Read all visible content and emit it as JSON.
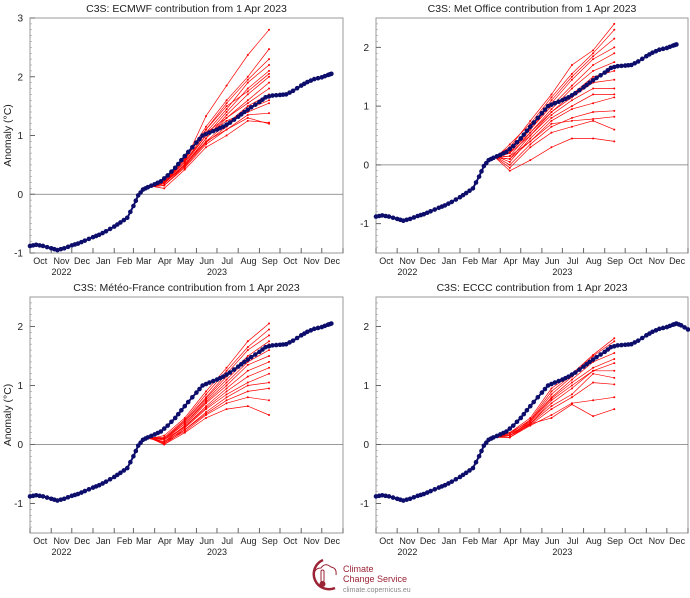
{
  "colors": {
    "observed": "#0d0d6b",
    "ensemble": "#ff0000",
    "zero_line": "#777777",
    "logo": "#9b2335"
  },
  "logo": {
    "line1": "Climate",
    "line2": "Change Service",
    "url": "climate.copernicus.eu"
  },
  "chart_data": [
    {
      "type": "line",
      "title": "C3S: ECMWF contribution from 1 Apr 2023",
      "ylabel": "Anomaly (°C)",
      "ylim": [
        -1,
        3
      ],
      "yticks": [
        -1,
        0,
        1,
        2,
        3
      ],
      "xlim": [
        "2022-10-01",
        "2024-01-01"
      ],
      "xtick_labels": [
        "Oct",
        "Nov",
        "Dec",
        "Jan",
        "Feb",
        "Mar",
        "Apr",
        "May",
        "Jun",
        "Jul",
        "Aug",
        "Sep",
        "Oct",
        "Nov",
        "Dec"
      ],
      "year_labels": [
        "2022",
        "2023"
      ],
      "obs_extra": [],
      "member_dates": [
        "2023-03-25",
        "2023-04-15",
        "2023-05-15",
        "2023-06-15",
        "2023-07-15",
        "2023-08-15",
        "2023-09-15"
      ],
      "members": [
        [
          0.15,
          0.2,
          0.55,
          1.33,
          1.85,
          2.37,
          2.8
        ],
        [
          0.13,
          0.22,
          0.6,
          1.15,
          1.6,
          2.0,
          2.47
        ],
        [
          0.12,
          0.25,
          0.58,
          1.1,
          1.55,
          1.95,
          2.3
        ],
        [
          0.14,
          0.2,
          0.55,
          1.05,
          1.45,
          1.9,
          2.2
        ],
        [
          0.12,
          0.18,
          0.52,
          1.0,
          1.4,
          1.8,
          2.1
        ],
        [
          0.15,
          0.24,
          0.6,
          1.1,
          1.5,
          1.75,
          2.05
        ],
        [
          0.13,
          0.2,
          0.5,
          0.95,
          1.35,
          1.7,
          2.0
        ],
        [
          0.12,
          0.15,
          0.48,
          0.95,
          1.3,
          1.6,
          1.9
        ],
        [
          0.14,
          0.22,
          0.55,
          1.05,
          1.3,
          1.55,
          1.8
        ],
        [
          0.13,
          0.18,
          0.5,
          0.9,
          1.2,
          1.5,
          1.7
        ],
        [
          0.12,
          0.2,
          0.47,
          0.88,
          1.15,
          1.45,
          1.6
        ],
        [
          0.15,
          0.25,
          0.55,
          1.0,
          1.25,
          1.4,
          1.55
        ],
        [
          0.13,
          0.15,
          0.45,
          0.85,
          1.1,
          1.35,
          1.38
        ],
        [
          0.12,
          0.2,
          0.5,
          0.9,
          1.1,
          1.3,
          1.2
        ],
        [
          0.14,
          0.1,
          0.42,
          0.8,
          1.0,
          1.25,
          1.22
        ]
      ]
    },
    {
      "type": "line",
      "title": "C3S: Met Office contribution from 1 Apr 2023",
      "ylabel": "",
      "ylim": [
        -1.5,
        2.5
      ],
      "yticks": [
        -1,
        0,
        1,
        2
      ],
      "xlim": [
        "2022-10-01",
        "2024-01-01"
      ],
      "xtick_labels": [
        "Oct",
        "Nov",
        "Dec",
        "Jan",
        "Feb",
        "Mar",
        "Apr",
        "May",
        "Jun",
        "Jul",
        "Aug",
        "Sep",
        "Oct",
        "Nov",
        "Dec"
      ],
      "year_labels": [
        "2022",
        "2023"
      ],
      "obs_extra": [],
      "member_dates": [
        "2023-03-25",
        "2023-04-15",
        "2023-05-15",
        "2023-06-15",
        "2023-07-15",
        "2023-08-15",
        "2023-09-15"
      ],
      "members": [
        [
          0.15,
          0.3,
          0.75,
          1.2,
          1.7,
          1.95,
          2.4
        ],
        [
          0.12,
          0.35,
          0.7,
          1.15,
          1.55,
          1.9,
          2.3
        ],
        [
          0.14,
          0.25,
          0.65,
          1.1,
          1.5,
          1.85,
          2.15
        ],
        [
          0.13,
          0.2,
          0.6,
          1.05,
          1.45,
          1.8,
          2.0
        ],
        [
          0.15,
          0.3,
          0.6,
          1.0,
          1.35,
          1.7,
          1.9
        ],
        [
          0.12,
          0.15,
          0.55,
          0.95,
          1.3,
          1.6,
          1.75
        ],
        [
          0.14,
          0.22,
          0.55,
          0.9,
          1.2,
          1.5,
          1.6
        ],
        [
          0.13,
          0.1,
          0.5,
          0.9,
          1.15,
          1.4,
          1.45
        ],
        [
          0.12,
          0.2,
          0.5,
          0.85,
          1.1,
          1.3,
          1.3
        ],
        [
          0.15,
          0.05,
          0.45,
          0.8,
          1.0,
          1.2,
          1.2
        ],
        [
          0.13,
          0.15,
          0.4,
          0.75,
          0.95,
          1.05,
          1.15
        ],
        [
          0.14,
          0.0,
          0.35,
          0.65,
          0.8,
          0.9,
          0.92
        ],
        [
          0.12,
          0.1,
          0.4,
          0.7,
          0.75,
          0.78,
          0.82
        ],
        [
          0.13,
          -0.05,
          0.3,
          0.55,
          0.65,
          0.75,
          0.6
        ],
        [
          0.12,
          -0.1,
          0.08,
          0.3,
          0.45,
          0.45,
          0.4
        ]
      ]
    },
    {
      "type": "line",
      "title": "C3S: Météo-France contribution from 1 Apr 2023",
      "ylabel": "Anomaly (°C)",
      "ylim": [
        -1.5,
        2.5
      ],
      "yticks": [
        -1,
        0,
        1,
        2
      ],
      "xlim": [
        "2022-10-01",
        "2024-01-01"
      ],
      "xtick_labels": [
        "Oct",
        "Nov",
        "Dec",
        "Jan",
        "Feb",
        "Mar",
        "Apr",
        "May",
        "Jun",
        "Jul",
        "Aug",
        "Sep",
        "Oct",
        "Nov",
        "Dec"
      ],
      "year_labels": [
        "2022",
        "2023"
      ],
      "obs_extra": [],
      "member_dates": [
        "2023-03-25",
        "2023-04-15",
        "2023-05-15",
        "2023-06-15",
        "2023-07-15",
        "2023-08-15",
        "2023-09-15"
      ],
      "members": [
        [
          0.1,
          0.15,
          0.45,
          0.9,
          1.3,
          1.75,
          2.05
        ],
        [
          0.12,
          0.12,
          0.42,
          0.85,
          1.25,
          1.65,
          1.95
        ],
        [
          0.1,
          0.1,
          0.4,
          0.8,
          1.2,
          1.6,
          1.85
        ],
        [
          0.11,
          0.1,
          0.38,
          0.78,
          1.15,
          1.5,
          1.75
        ],
        [
          0.1,
          0.08,
          0.35,
          0.75,
          1.1,
          1.45,
          1.7
        ],
        [
          0.12,
          0.1,
          0.35,
          0.72,
          1.05,
          1.4,
          1.6
        ],
        [
          0.1,
          0.05,
          0.32,
          0.7,
          1.0,
          1.35,
          1.5
        ],
        [
          0.11,
          0.08,
          0.3,
          0.65,
          0.95,
          1.25,
          1.4
        ],
        [
          0.1,
          0.05,
          0.3,
          0.62,
          0.9,
          1.15,
          1.3
        ],
        [
          0.12,
          0.02,
          0.28,
          0.6,
          0.85,
          1.05,
          1.2
        ],
        [
          0.1,
          0.05,
          0.25,
          0.55,
          0.8,
          1.0,
          1.05
        ],
        [
          0.11,
          0.0,
          0.25,
          0.52,
          0.75,
          0.9,
          0.95
        ],
        [
          0.1,
          0.03,
          0.22,
          0.5,
          0.7,
          0.8,
          0.75
        ],
        [
          0.12,
          0.0,
          0.2,
          0.45,
          0.6,
          0.65,
          0.5
        ]
      ]
    },
    {
      "type": "line",
      "title": "C3S: ECCC contribution from 1 Apr 2023",
      "ylabel": "",
      "ylim": [
        -1.5,
        2.5
      ],
      "yticks": [
        -1,
        0,
        1,
        2
      ],
      "xlim": [
        "2022-10-01",
        "2024-01-01"
      ],
      "xtick_labels": [
        "Oct",
        "Nov",
        "Dec",
        "Jan",
        "Feb",
        "Mar",
        "Apr",
        "May",
        "Jun",
        "Jul",
        "Aug",
        "Sep",
        "Oct",
        "Nov",
        "Dec"
      ],
      "year_labels": [
        "2022",
        "2023"
      ],
      "obs_extra": [
        [
          "2023-12-22",
          2.02
        ],
        [
          "2024-01-01",
          1.95
        ]
      ],
      "member_dates": [
        "2023-03-25",
        "2023-04-15",
        "2023-05-15",
        "2023-06-15",
        "2023-07-15",
        "2023-08-15",
        "2023-09-15"
      ],
      "members": [
        [
          0.15,
          0.2,
          0.45,
          0.95,
          1.2,
          1.52,
          1.8
        ],
        [
          0.13,
          0.18,
          0.42,
          0.9,
          1.18,
          1.5,
          1.75
        ],
        [
          0.14,
          0.15,
          0.4,
          0.85,
          1.15,
          1.45,
          1.65
        ],
        [
          0.12,
          0.2,
          0.4,
          0.8,
          1.1,
          1.4,
          1.55
        ],
        [
          0.15,
          0.15,
          0.38,
          0.78,
          1.05,
          1.3,
          1.45
        ],
        [
          0.13,
          0.12,
          0.35,
          0.75,
          1.0,
          1.25,
          1.38
        ],
        [
          0.12,
          0.18,
          0.36,
          0.7,
          0.95,
          1.25,
          1.25
        ],
        [
          0.14,
          0.12,
          0.35,
          0.65,
          0.85,
          1.2,
          1.13
        ],
        [
          0.13,
          0.15,
          0.33,
          0.6,
          0.8,
          1.05,
          1.02
        ],
        [
          0.12,
          0.12,
          0.32,
          0.5,
          0.7,
          0.75,
          0.8
        ],
        [
          0.14,
          0.15,
          0.35,
          0.45,
          0.68,
          0.48,
          0.6
        ]
      ]
    }
  ],
  "observed": [
    [
      "2022-10-01",
      -0.88
    ],
    [
      "2022-10-10",
      -0.86
    ],
    [
      "2022-10-20",
      -0.88
    ],
    [
      "2022-11-01",
      -0.92
    ],
    [
      "2022-11-10",
      -0.95
    ],
    [
      "2022-11-20",
      -0.92
    ],
    [
      "2022-12-01",
      -0.87
    ],
    [
      "2022-12-10",
      -0.84
    ],
    [
      "2022-12-20",
      -0.79
    ],
    [
      "2023-01-01",
      -0.73
    ],
    [
      "2023-01-10",
      -0.69
    ],
    [
      "2023-01-20",
      -0.63
    ],
    [
      "2023-02-01",
      -0.55
    ],
    [
      "2023-02-10",
      -0.48
    ],
    [
      "2023-02-20",
      -0.4
    ],
    [
      "2023-03-01",
      -0.2
    ],
    [
      "2023-03-08",
      -0.02
    ],
    [
      "2023-03-15",
      0.08
    ],
    [
      "2023-03-22",
      0.12
    ],
    [
      "2023-04-01",
      0.17
    ],
    [
      "2023-04-10",
      0.22
    ],
    [
      "2023-04-20",
      0.32
    ],
    [
      "2023-05-01",
      0.45
    ],
    [
      "2023-05-10",
      0.58
    ],
    [
      "2023-05-20",
      0.72
    ],
    [
      "2023-06-01",
      0.88
    ],
    [
      "2023-06-10",
      1.0
    ],
    [
      "2023-06-20",
      1.05
    ],
    [
      "2023-07-01",
      1.1
    ],
    [
      "2023-07-10",
      1.15
    ],
    [
      "2023-07-20",
      1.22
    ],
    [
      "2023-08-01",
      1.32
    ],
    [
      "2023-08-10",
      1.4
    ],
    [
      "2023-08-20",
      1.48
    ],
    [
      "2023-09-01",
      1.57
    ],
    [
      "2023-09-10",
      1.65
    ],
    [
      "2023-09-20",
      1.68
    ],
    [
      "2023-10-01",
      1.69
    ],
    [
      "2023-10-10",
      1.7
    ],
    [
      "2023-10-20",
      1.76
    ],
    [
      "2023-11-01",
      1.85
    ],
    [
      "2023-11-10",
      1.91
    ],
    [
      "2023-11-20",
      1.96
    ],
    [
      "2023-12-01",
      1.99
    ],
    [
      "2023-12-10",
      2.03
    ],
    [
      "2023-12-15",
      2.05
    ]
  ]
}
